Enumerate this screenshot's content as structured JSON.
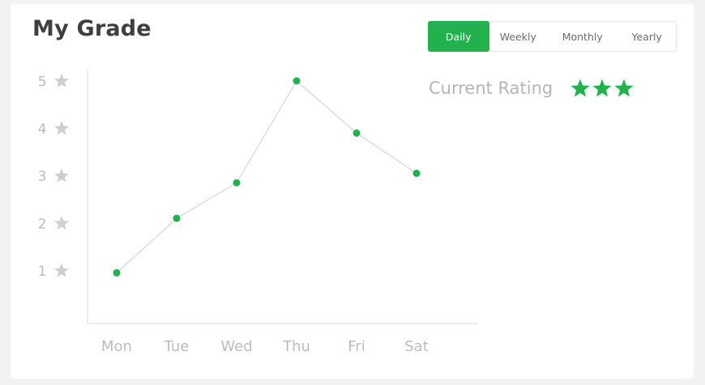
{
  "header": {
    "title": "My Grade"
  },
  "tabs": [
    {
      "label": "Daily",
      "active": true
    },
    {
      "label": "Weekly",
      "active": false
    },
    {
      "label": "Monthly",
      "active": false
    },
    {
      "label": "Yearly",
      "active": false
    }
  ],
  "rating": {
    "label": "Current Rating",
    "stars": 3,
    "star_icon": "star-icon"
  },
  "colors": {
    "accent": "#22b14c",
    "axis": "#d8d8d8",
    "line": "#d6d6d6",
    "tick_text": "#bcbcbc",
    "star_gray": "#cfcfcf"
  },
  "chart_data": {
    "type": "line",
    "categories": [
      "Mon",
      "Tue",
      "Wed",
      "Thu",
      "Fri",
      "Sat"
    ],
    "values": [
      0.95,
      2.1,
      2.85,
      5.0,
      3.9,
      3.05
    ],
    "y_ticks": [
      "1",
      "2",
      "3",
      "4",
      "5"
    ],
    "ylim": [
      0,
      5
    ],
    "y_tick_icon": "star-icon",
    "grid": false
  }
}
